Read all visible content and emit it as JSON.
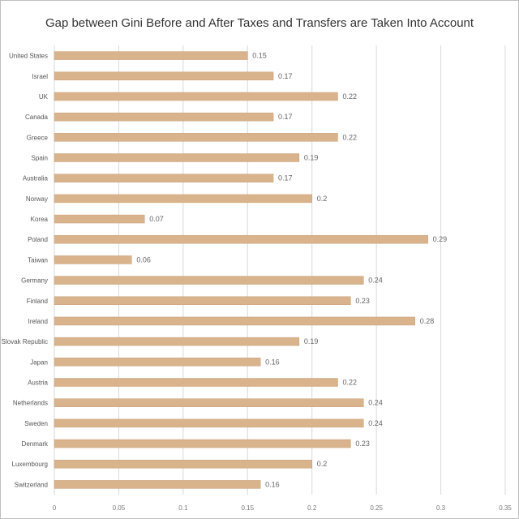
{
  "chart_data": {
    "type": "bar",
    "orientation": "horizontal",
    "title": "Gap between Gini Before and After Taxes and Transfers are Taken Into Account",
    "categories": [
      "United States",
      "Israel",
      "UK",
      "Canada",
      "Greece",
      "Spain",
      "Australia",
      "Norway",
      "Korea",
      "Poland",
      "Taiwan",
      "Germany",
      "Finland",
      "Ireland",
      "Slovak Republic",
      "Japan",
      "Austria",
      "Netherlands",
      "Sweden",
      "Denmark",
      "Luxembourg",
      "Switzerland"
    ],
    "values": [
      0.15,
      0.17,
      0.22,
      0.17,
      0.22,
      0.19,
      0.17,
      0.2,
      0.07,
      0.29,
      0.06,
      0.24,
      0.23,
      0.28,
      0.19,
      0.16,
      0.22,
      0.24,
      0.24,
      0.23,
      0.2,
      0.16
    ],
    "value_labels": [
      "0.15",
      "0.17",
      "0.22",
      "0.17",
      "0.22",
      "0.19",
      "0.17",
      "0.2",
      "0.07",
      "0.29",
      "0.06",
      "0.24",
      "0.23",
      "0.28",
      "0.19",
      "0.16",
      "0.22",
      "0.24",
      "0.24",
      "0.23",
      "0.2",
      "0.16"
    ],
    "xlim": [
      0,
      0.35
    ],
    "x_ticks": [
      0,
      0.05,
      0.1,
      0.15,
      0.2,
      0.25,
      0.3,
      0.35
    ],
    "x_tick_labels": [
      "0",
      "0.05",
      "0.1",
      "0.15",
      "0.2",
      "0.25",
      "0.3",
      "0.35"
    ],
    "xlabel": "",
    "ylabel": "",
    "grid": true,
    "legend": "none",
    "bar_color": "#D9B38C",
    "bar_border_color": "#C9A07A",
    "grid_color": "#D9D9D9",
    "frame_color": "#BFBFBF"
  }
}
